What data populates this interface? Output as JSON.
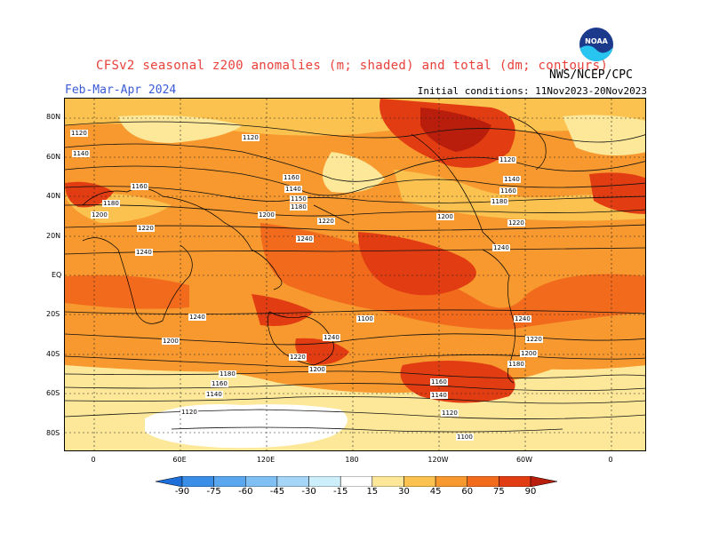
{
  "title": "CFSv2 seasonal z200 anomalies (m; shaded) and total (dm; contours)",
  "season": "Feb-Mar-Apr 2024",
  "agency": "NWS/NCEP/CPC",
  "initial_conditions": "Initial conditions: 11Nov2023-20Nov2023",
  "logo_text": "NOAA",
  "lat_labels": [
    "80N",
    "60N",
    "40N",
    "20N",
    "EQ",
    "20S",
    "40S",
    "60S",
    "80S"
  ],
  "lon_labels": [
    "0",
    "60E",
    "120E",
    "180",
    "120W",
    "60W",
    "0"
  ],
  "colorbar": {
    "values": [
      "-90",
      "-75",
      "-60",
      "-45",
      "-30",
      "-15",
      "15",
      "30",
      "45",
      "60",
      "75",
      "90"
    ],
    "colors": [
      "#1e6fd9",
      "#3a8ee8",
      "#5aa7ef",
      "#7fbff3",
      "#a6d6f7",
      "#cdeffb",
      "#ffffff",
      "#fde89a",
      "#fbc24f",
      "#f7992e",
      "#f26a1c",
      "#e23c12",
      "#b81e0b"
    ]
  },
  "contour_labels": [
    "1120",
    "1140",
    "1180",
    "1160",
    "1200",
    "1220",
    "1240",
    "1120",
    "1140",
    "1150",
    "1160",
    "1180",
    "1200",
    "1220",
    "1240",
    "1240",
    "1200",
    "1180",
    "1160",
    "1140",
    "1120",
    "1100",
    "1240",
    "1220",
    "1200",
    "1160",
    "1140",
    "1120",
    "1100",
    "1120",
    "1140",
    "1160",
    "1180",
    "1200",
    "1220",
    "1240",
    "1240",
    "1220",
    "1200",
    "1180",
    "1160"
  ]
}
